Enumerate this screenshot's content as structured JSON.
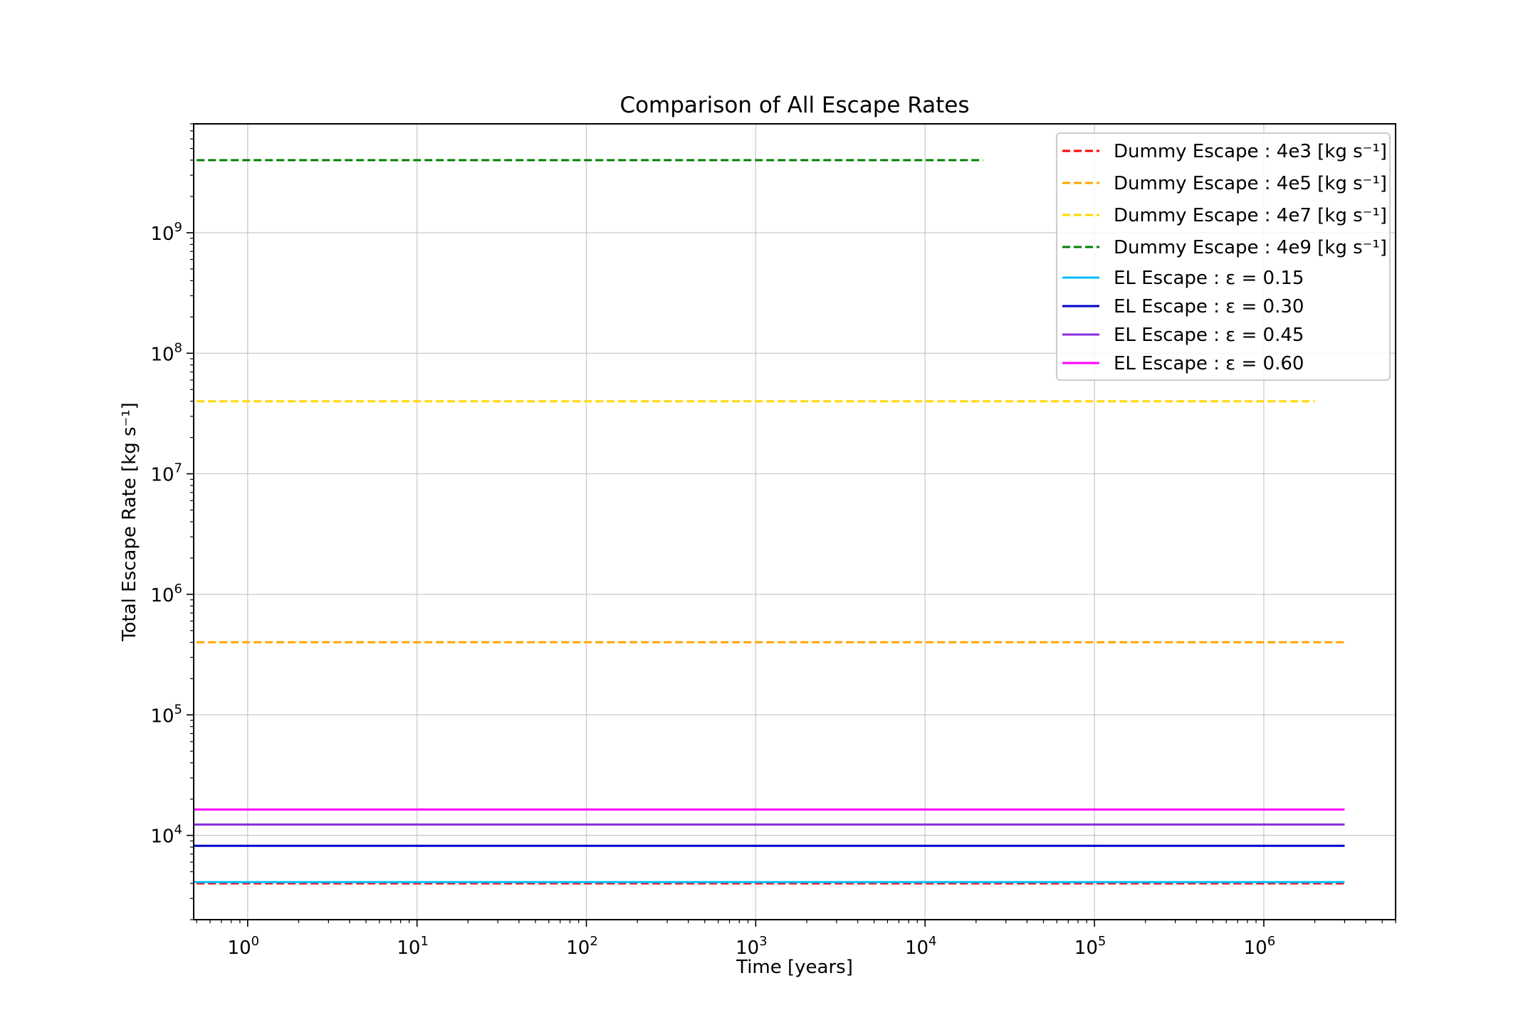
{
  "chart_data": {
    "type": "line",
    "title": "Comparison of All Escape Rates",
    "xlabel": "Time [years]",
    "ylabel": "Total Escape Rate [kg s⁻¹]",
    "xscale": "log",
    "yscale": "log",
    "xlim": [
      0.48,
      6000000
    ],
    "ylim": [
      2000,
      8000000000
    ],
    "grid": true,
    "legend_position": "top-right",
    "x_ticks": [
      {
        "value": 1,
        "base": "10",
        "exp": "0"
      },
      {
        "value": 10,
        "base": "10",
        "exp": "1"
      },
      {
        "value": 100,
        "base": "10",
        "exp": "2"
      },
      {
        "value": 1000,
        "base": "10",
        "exp": "3"
      },
      {
        "value": 10000,
        "base": "10",
        "exp": "4"
      },
      {
        "value": 100000,
        "base": "10",
        "exp": "5"
      },
      {
        "value": 1000000,
        "base": "10",
        "exp": "6"
      }
    ],
    "y_ticks": [
      {
        "value": 10000,
        "base": "10",
        "exp": "4"
      },
      {
        "value": 100000,
        "base": "10",
        "exp": "5"
      },
      {
        "value": 1000000,
        "base": "10",
        "exp": "6"
      },
      {
        "value": 10000000,
        "base": "10",
        "exp": "7"
      },
      {
        "value": 100000000,
        "base": "10",
        "exp": "8"
      },
      {
        "value": 1000000000,
        "base": "10",
        "exp": "9"
      }
    ],
    "series": [
      {
        "name": "Dummy Escape : 4e3 [kg s⁻¹]",
        "color": "#ff0000",
        "style": "dashed",
        "x": [
          0.5,
          3000000
        ],
        "y": [
          4000,
          4000
        ]
      },
      {
        "name": "Dummy Escape : 4e5 [kg s⁻¹]",
        "color": "#ffa500",
        "style": "dashed",
        "x": [
          0.5,
          3000000
        ],
        "y": [
          400000,
          400000
        ]
      },
      {
        "name": "Dummy Escape : 4e7 [kg s⁻¹]",
        "color": "#ffd700",
        "style": "dashed",
        "x": [
          0.5,
          2000000
        ],
        "y": [
          40000000,
          40000000
        ]
      },
      {
        "name": "Dummy Escape : 4e9 [kg s⁻¹]",
        "color": "#008000",
        "style": "dashed",
        "x": [
          0.5,
          22000
        ],
        "y": [
          4000000000,
          4000000000
        ]
      },
      {
        "name": "EL Escape : ε = 0.15",
        "color": "#00bfff",
        "style": "solid",
        "x": [
          0.48,
          3000000
        ],
        "y": [
          4100,
          4100
        ]
      },
      {
        "name": "EL Escape : ε = 0.30",
        "color": "#0000cd",
        "style": "solid",
        "x": [
          0.48,
          3000000
        ],
        "y": [
          8200,
          8200
        ]
      },
      {
        "name": "EL Escape : ε = 0.45",
        "color": "#8a2be2",
        "style": "solid",
        "x": [
          0.48,
          3000000
        ],
        "y": [
          12300,
          12300
        ]
      },
      {
        "name": "EL Escape : ε = 0.60",
        "color": "#ff00ff",
        "style": "solid",
        "x": [
          0.48,
          3000000
        ],
        "y": [
          16400,
          16400
        ]
      }
    ]
  }
}
